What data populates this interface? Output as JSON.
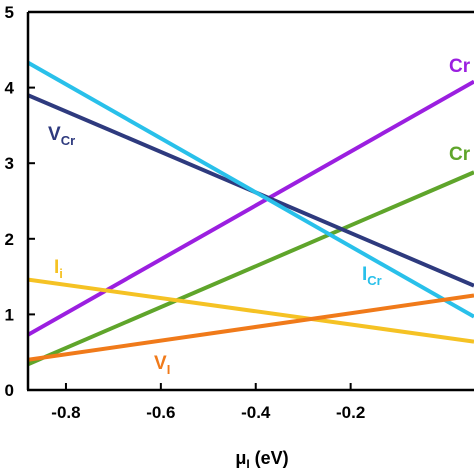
{
  "chart_data": {
    "type": "line",
    "xlabel": "μ",
    "xlabel_sub": "I",
    "xlabel_unit": "(eV)",
    "xlim": [
      -0.88,
      0.06
    ],
    "ylim": [
      0,
      5
    ],
    "x_ticks": [
      -0.8,
      -0.6,
      -0.4,
      -0.2
    ],
    "x_tick_labels": [
      "-0.8",
      "-0.6",
      "-0.4",
      "-0.2"
    ],
    "y_ticks": [
      0,
      1,
      2,
      3,
      4,
      5
    ],
    "y_tick_labels": [
      "0",
      "1",
      "2",
      "3",
      "4",
      "5"
    ],
    "grid": false,
    "series": [
      {
        "key": "cr-top",
        "label": "Cr",
        "sub": "",
        "color": "#9b1fe0",
        "x": [
          -0.88,
          0.06
        ],
        "y": [
          0.73,
          4.08
        ],
        "label_color": "#9b1fe0"
      },
      {
        "key": "cr-mid",
        "label": "Cr",
        "sub": "",
        "color": "#5fa52b",
        "x": [
          -0.88,
          0.06
        ],
        "y": [
          0.34,
          2.88
        ],
        "label_color": "#5fa52b"
      },
      {
        "key": "v-cr",
        "label": "V",
        "sub": "Cr",
        "color": "#2e3a7e",
        "x": [
          -0.88,
          0.06
        ],
        "y": [
          3.9,
          1.38
        ],
        "label_color": "#2e3a7e"
      },
      {
        "key": "i-cr",
        "label": "I",
        "sub": "Cr",
        "color": "#29c0ea",
        "x": [
          -0.88,
          0.06
        ],
        "y": [
          4.33,
          0.97
        ],
        "label_color": "#29c0ea"
      },
      {
        "key": "i-i",
        "label": "I",
        "sub": "i",
        "color": "#f5c224",
        "x": [
          -0.88,
          0.06
        ],
        "y": [
          1.46,
          0.64
        ],
        "label_color": "#f5c224"
      },
      {
        "key": "v-i",
        "label": "V",
        "sub": "I",
        "color": "#f07a1a",
        "x": [
          -0.88,
          0.06
        ],
        "y": [
          0.4,
          1.25
        ],
        "label_color": "#f07a1a"
      }
    ]
  }
}
